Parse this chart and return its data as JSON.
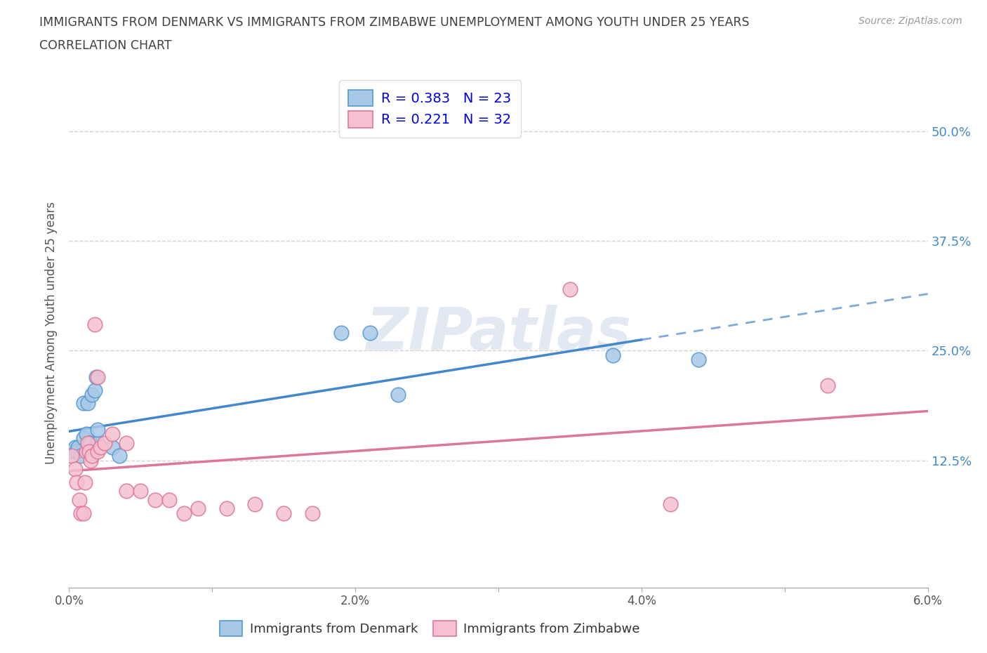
{
  "title_line1": "IMMIGRANTS FROM DENMARK VS IMMIGRANTS FROM ZIMBABWE UNEMPLOYMENT AMONG YOUTH UNDER 25 YEARS",
  "title_line2": "CORRELATION CHART",
  "source_text": "Source: ZipAtlas.com",
  "ylabel": "Unemployment Among Youth under 25 years",
  "watermark": "ZIPatlas",
  "xlim": [
    0.0,
    0.06
  ],
  "ylim": [
    -0.02,
    0.56
  ],
  "xtick_vals": [
    0.0,
    0.01,
    0.02,
    0.03,
    0.04,
    0.05,
    0.06
  ],
  "xticklabels": [
    "0.0%",
    "",
    "2.0%",
    "",
    "4.0%",
    "",
    "6.0%"
  ],
  "ytick_vals": [
    0.125,
    0.25,
    0.375,
    0.5
  ],
  "ytick_labels": [
    "12.5%",
    "25.0%",
    "37.5%",
    "50.0%"
  ],
  "denmark_color": "#a8c8e8",
  "denmark_edge_color": "#5599cc",
  "denmark_line_color": "#4488cc",
  "zimbabwe_color": "#f5c0d0",
  "zimbabwe_edge_color": "#dd7799",
  "zimbabwe_line_color": "#dd7799",
  "grid_color": "#cccccc",
  "background_color": "#ffffff",
  "title_color": "#404040",
  "label_color": "#555555",
  "legend_text_color": "#0000dd",
  "denmark_x": [
    0.0002,
    0.0004,
    0.0005,
    0.0006,
    0.0008,
    0.001,
    0.001,
    0.0012,
    0.0013,
    0.0014,
    0.0015,
    0.0016,
    0.0018,
    0.0019,
    0.002,
    0.002,
    0.003,
    0.0035,
    0.019,
    0.021,
    0.023,
    0.038,
    0.044
  ],
  "denmark_y": [
    0.135,
    0.14,
    0.135,
    0.14,
    0.13,
    0.15,
    0.19,
    0.155,
    0.19,
    0.145,
    0.145,
    0.2,
    0.205,
    0.22,
    0.145,
    0.16,
    0.14,
    0.13,
    0.27,
    0.27,
    0.2,
    0.245,
    0.24
  ],
  "zimbabwe_x": [
    0.0002,
    0.0004,
    0.0005,
    0.0007,
    0.0008,
    0.001,
    0.0011,
    0.0012,
    0.0013,
    0.0014,
    0.0015,
    0.0016,
    0.0018,
    0.002,
    0.002,
    0.0022,
    0.0025,
    0.003,
    0.004,
    0.004,
    0.005,
    0.006,
    0.007,
    0.008,
    0.009,
    0.011,
    0.013,
    0.015,
    0.017,
    0.035,
    0.042,
    0.053
  ],
  "zimbabwe_y": [
    0.13,
    0.115,
    0.1,
    0.08,
    0.065,
    0.065,
    0.1,
    0.135,
    0.145,
    0.135,
    0.125,
    0.13,
    0.28,
    0.22,
    0.135,
    0.14,
    0.145,
    0.155,
    0.09,
    0.145,
    0.09,
    0.08,
    0.08,
    0.065,
    0.07,
    0.07,
    0.075,
    0.065,
    0.065,
    0.32,
    0.075,
    0.21
  ],
  "dk_line_x0": 0.0,
  "dk_line_x1": 0.04,
  "dk_line_dash_x0": 0.04,
  "dk_line_dash_x1": 0.06,
  "source_italic": true
}
